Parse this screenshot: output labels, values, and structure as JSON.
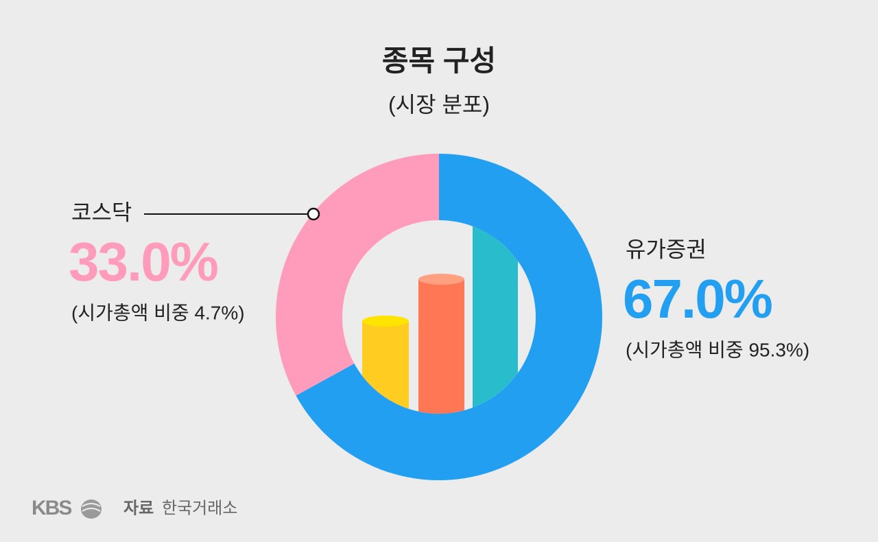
{
  "chart_data": {
    "type": "donut",
    "title": "종목 구성",
    "subtitle": "(시장 분포)",
    "categories": [
      "유가증권",
      "코스닥"
    ],
    "values": [
      67.0,
      33.0
    ],
    "value_labels": [
      "67.0%",
      "33.0%"
    ],
    "colors": [
      "#239ff2",
      "#ff9bbb"
    ],
    "annotations": [
      "(시가총액 비중 95.3%)",
      "(시가총액 비중 4.7%)"
    ],
    "logo": "KBS",
    "source_label": "자료",
    "source": "한국거래소"
  }
}
